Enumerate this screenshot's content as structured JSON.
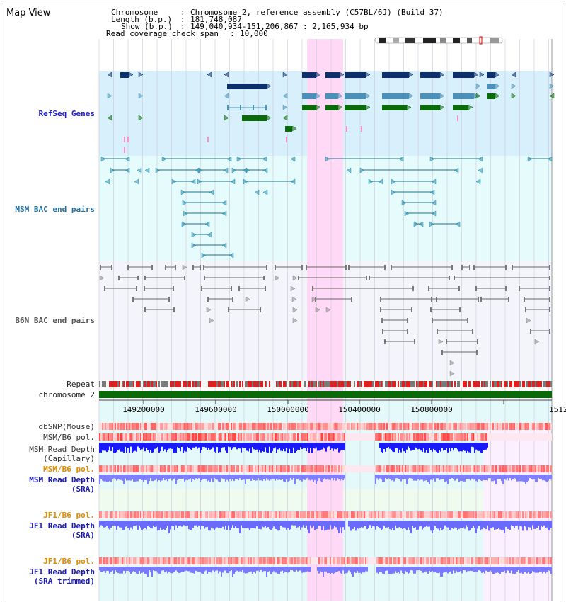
{
  "page": {
    "title": "Map View"
  },
  "header": {
    "chromosome_label": "Chromosome",
    "chromosome_value": "Chromosome 2, reference assembly (C57BL/6J) (Build 37)",
    "length_label": "Length (b.p.)",
    "length_value": "181,748,087",
    "show_label": "Show (b.p.)",
    "show_value": "149,040,934-151,206,867 : 2,165,934 bp",
    "coverage_label": "Read coverage check span",
    "coverage_value": "10,000"
  },
  "tracks": {
    "refseq": "RefSeq Genes",
    "msm_bac": "MSM BAC end pairs",
    "b6n_bac": "B6N BAC end pairs",
    "repeat": "Repeat",
    "chromosome": "chromosome 2",
    "dbsnp": "dbSNP(Mouse)",
    "msm_b6_pol_1": "MSM/B6 pol.",
    "msm_depth_cap_1": "MSM Read Depth",
    "msm_depth_cap_2": "(Capillary)",
    "msm_b6_pol_2": "MSM/B6 pol.",
    "msm_depth_sra_1": "MSM Read Depth",
    "msm_depth_sra_2": "(SRA)",
    "jf1_b6_pol_1": "JF1/B6 pol.",
    "jf1_depth_1": "JF1 Read Depth",
    "jf1_depth_2": "(SRA)",
    "jf1_b6_pol_2": "JF1/B6 pol.",
    "jf1_depth_trim_1": "JF1 Read Depth",
    "jf1_depth_trim_2": "(SRA trimmed)"
  },
  "ruler": {
    "ticks": [
      "149200000",
      "149600000",
      "150000000",
      "150400000",
      "150800000",
      "1512"
    ]
  },
  "colors": {
    "refseq_label": "#2020c0",
    "msm_label": "#2070a0",
    "b6n_label": "#555555",
    "orange_label": "#e08c00",
    "blue_label": "#1a1ab0",
    "highlight": "#ffd9f5",
    "refseq_bg": "#d8f0fb",
    "gene_navy": "#0d2f6b",
    "gene_steel": "#4a90b8",
    "gene_green": "#0b6b0b",
    "chrom_bar": "#0a6a0a",
    "depth_blue": "#2020ff",
    "depth_light": "#7a7aff"
  }
}
